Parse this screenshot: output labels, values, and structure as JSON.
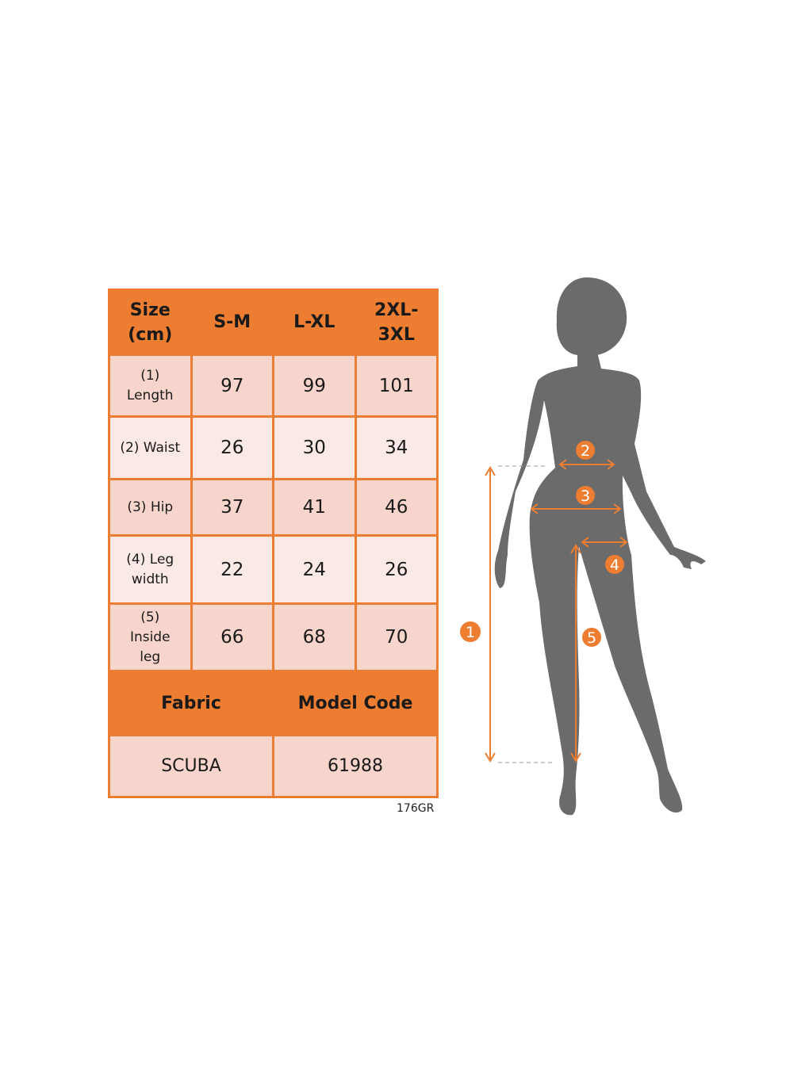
{
  "table": {
    "header": [
      "Size (cm)",
      "S-M",
      "L-XL",
      "2XL-3XL"
    ],
    "rows": [
      {
        "label": "(1) Length",
        "values": [
          "97",
          "99",
          "101"
        ]
      },
      {
        "label": "(2) Waist",
        "values": [
          "26",
          "30",
          "34"
        ]
      },
      {
        "label": "(3) Hip",
        "values": [
          "37",
          "41",
          "46"
        ]
      },
      {
        "label": "(4) Leg width",
        "values": [
          "22",
          "24",
          "26"
        ]
      },
      {
        "label": "(5) Inside leg",
        "values": [
          "66",
          "68",
          "70"
        ]
      }
    ],
    "footer_headers": [
      "Fabric",
      "Model Code"
    ],
    "footer_values": [
      "SCUBA",
      "61988"
    ]
  },
  "model_height_note": "176GR",
  "figure": {
    "markers": [
      "1",
      "2",
      "3",
      "4",
      "5"
    ]
  },
  "colors": {
    "accent": "#ed7d31",
    "cell_dark": "#f8d5cc",
    "cell_light": "#fbe9e5",
    "silhouette": "#6b6b6b"
  }
}
